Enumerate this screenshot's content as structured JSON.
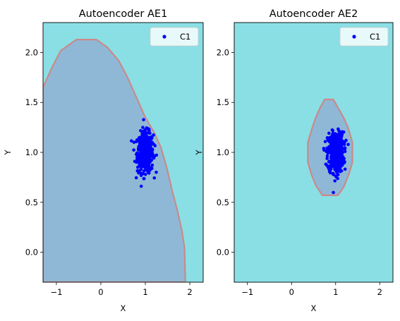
{
  "colors": {
    "background_region": "#8adfe5",
    "inside_region": "#8fb8d6",
    "boundary": "#c98a8a",
    "points": "#0000ff"
  },
  "chart_data": [
    {
      "type": "scatter",
      "title": "Autoencoder AE1",
      "xlabel": "X",
      "ylabel": "Y",
      "xlim": [
        -1.3,
        2.3
      ],
      "ylim": [
        -0.3,
        2.3
      ],
      "xticks": [
        "−1",
        "0",
        "1",
        "2"
      ],
      "xtick_values": [
        -1,
        0,
        1,
        2
      ],
      "yticks": [
        "0.0",
        "0.5",
        "1.0",
        "1.5",
        "2.0"
      ],
      "ytick_values": [
        0.0,
        0.5,
        1.0,
        1.5,
        2.0
      ],
      "legend": {
        "position": "top-right",
        "entries": [
          "C1"
        ]
      },
      "series": [
        {
          "name": "C1",
          "center": [
            1.0,
            1.0
          ],
          "spread": [
            0.09,
            0.1
          ],
          "count": 500
        }
      ],
      "decision_region": [
        [
          -1.3,
          1.65
        ],
        [
          -1.1,
          1.85
        ],
        [
          -0.9,
          2.02
        ],
        [
          -0.55,
          2.13
        ],
        [
          -0.1,
          2.13
        ],
        [
          0.15,
          2.05
        ],
        [
          0.4,
          1.92
        ],
        [
          0.6,
          1.75
        ],
        [
          0.8,
          1.55
        ],
        [
          1.0,
          1.35
        ],
        [
          1.2,
          1.2
        ],
        [
          1.35,
          1.05
        ],
        [
          1.48,
          0.85
        ],
        [
          1.6,
          0.62
        ],
        [
          1.72,
          0.42
        ],
        [
          1.82,
          0.22
        ],
        [
          1.88,
          0.05
        ],
        [
          1.9,
          -0.3
        ],
        [
          -1.3,
          -0.3
        ]
      ]
    },
    {
      "type": "scatter",
      "title": "Autoencoder AE2",
      "xlabel": "X",
      "ylabel": "Y",
      "xlim": [
        -1.3,
        2.3
      ],
      "ylim": [
        -0.3,
        2.3
      ],
      "xticks": [
        "−1",
        "0",
        "1",
        "2"
      ],
      "xtick_values": [
        -1,
        0,
        1,
        2
      ],
      "yticks": [
        "0.0",
        "0.5",
        "1.0",
        "1.5",
        "2.0"
      ],
      "ytick_values": [
        0.0,
        0.5,
        1.0,
        1.5,
        2.0
      ],
      "legend": {
        "position": "top-right",
        "entries": [
          "C1"
        ]
      },
      "series": [
        {
          "name": "C1",
          "center": [
            1.0,
            1.0
          ],
          "spread": [
            0.09,
            0.1
          ],
          "count": 500
        }
      ],
      "decision_region": [
        [
          0.75,
          1.53
        ],
        [
          0.95,
          1.53
        ],
        [
          1.05,
          1.45
        ],
        [
          1.18,
          1.35
        ],
        [
          1.28,
          1.25
        ],
        [
          1.38,
          1.1
        ],
        [
          1.38,
          0.9
        ],
        [
          1.3,
          0.78
        ],
        [
          1.18,
          0.65
        ],
        [
          1.05,
          0.57
        ],
        [
          0.7,
          0.57
        ],
        [
          0.55,
          0.67
        ],
        [
          0.45,
          0.78
        ],
        [
          0.37,
          0.9
        ],
        [
          0.37,
          1.1
        ],
        [
          0.45,
          1.22
        ],
        [
          0.55,
          1.35
        ],
        [
          0.65,
          1.45
        ]
      ]
    }
  ]
}
